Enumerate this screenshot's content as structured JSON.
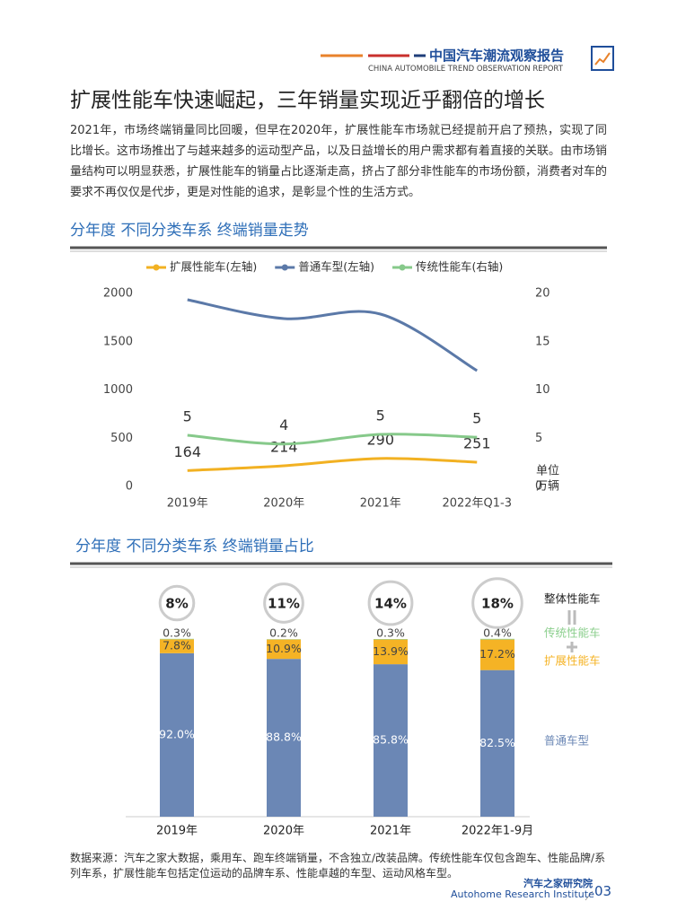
{
  "header": {
    "title": "中国汽车潮流观察报告",
    "subtitle": "CHINA AUTOMOBILE TREND OBSERVATION REPORT"
  },
  "heading": "扩展性能车快速崛起，三年销量实现近乎翻倍的增长",
  "paragraph": "2021年，市场终端销量同比回暖，但早在2020年，扩展性能车市场就已经提前开启了预热，实现了同比增长。这市场推出了与越来越多的运动型产品，以及日益增长的用户需求都有着直接的关联。由市场销量结构可以明显获悉，扩展性能车的销量占比逐渐走高，挤占了部分非性能车的市场份额，消费者对车的要求不再仅仅是代步，更是对性能的追求，是彰显个性的生活方式。",
  "chart_data": [
    {
      "type": "line",
      "title": "分年度 不同分类车系 终端销量走势",
      "categories": [
        "2019年",
        "2020年",
        "2021年",
        "2022年Q1-3"
      ],
      "series": [
        {
          "name": "扩展性能车(左轴)",
          "color": "#f2b122",
          "values": [
            164,
            214,
            290,
            251
          ],
          "show_labels": true
        },
        {
          "name": "普通车型(左轴)",
          "color": "#5b79a8",
          "values": [
            1935,
            1740,
            1786,
            1200
          ],
          "show_labels": false
        },
        {
          "name": "传统性能车(右轴)",
          "color": "#86c98a",
          "axis": "y2",
          "values": [
            5.3,
            4.4,
            5.4,
            5.1
          ],
          "value_labels": [
            "5",
            "4",
            "5",
            "5"
          ],
          "show_labels": true
        }
      ],
      "ylim": [
        0,
        2000
      ],
      "yticks": [
        0,
        500,
        1000,
        1500,
        2000
      ],
      "y2lim": [
        0,
        20
      ],
      "y2ticks": [
        0,
        5,
        10,
        15,
        20
      ],
      "unit_label": [
        "单位",
        "万辆"
      ],
      "legend": "top",
      "grid": false
    },
    {
      "type": "bar",
      "stacked": true,
      "title": "分年度 不同分类车系 终端销量占比",
      "categories": [
        "2019年",
        "2020年",
        "2021年",
        "2022年1-9月"
      ],
      "series": [
        {
          "name": "普通车型",
          "color": "#6b87b5",
          "values": [
            92.0,
            88.8,
            85.8,
            82.5
          ],
          "value_labels": [
            "92.0%",
            "88.8%",
            "85.8%",
            "82.5%"
          ]
        },
        {
          "name": "扩展性能车",
          "color": "#f5b325",
          "values": [
            7.8,
            10.9,
            13.9,
            17.2
          ],
          "value_labels": [
            "7.8%",
            "10.9%",
            "13.9%",
            "17.2%"
          ]
        },
        {
          "name": "传统性能车",
          "color": "#8ccf8e",
          "values": [
            0.3,
            0.2,
            0.3,
            0.4
          ],
          "value_labels": [
            "0.3%",
            "0.2%",
            "0.3%",
            "0.4%"
          ]
        }
      ],
      "totals": {
        "name": "整体性能车",
        "values": [
          8,
          11,
          14,
          18
        ],
        "value_labels": [
          "8%",
          "11%",
          "14%",
          "18%"
        ]
      },
      "ylim": [
        0,
        100
      ],
      "legend": "right"
    }
  ],
  "source": "数据来源：汽车之家大数据，乘用车、跑车终端销量，不含独立/改装品牌。传统性能车仅包含跑车、性能品牌/系列车系，扩展性能车包括定位运动的品牌车系、性能卓越的车型、运动风格车型。",
  "footer": {
    "org": "汽车之家研究院",
    "org_en": "Autohome Research Institute",
    "page_number": "03"
  }
}
